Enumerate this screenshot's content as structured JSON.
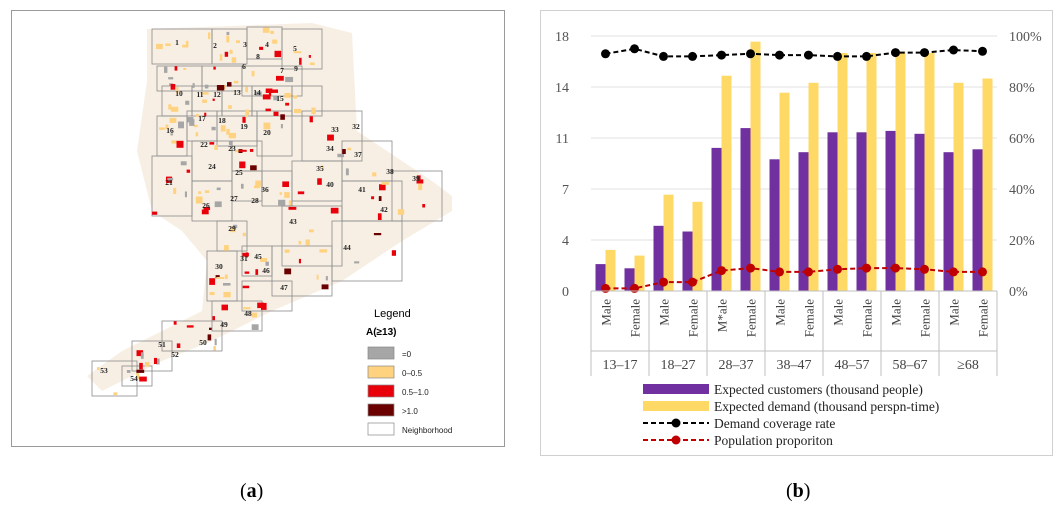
{
  "map": {
    "legend_title": "Legend",
    "legend_subtitle": "A(≥13)",
    "legend_items": [
      {
        "label": "=0",
        "color": "#a6a6a6"
      },
      {
        "label": "0–0.5",
        "color": "#ffd27f"
      },
      {
        "label": "0.5–1.0",
        "color": "#e8000b"
      },
      {
        "label": ">1.0",
        "color": "#6b0000"
      },
      {
        "label": "Neighborhood",
        "color": "#ffffff"
      }
    ],
    "neighborhood_labels": [
      "1",
      "2",
      "3",
      "4",
      "5",
      "6",
      "7",
      "8",
      "9",
      "10",
      "11",
      "12",
      "13",
      "14",
      "15",
      "16",
      "17",
      "18",
      "19",
      "20",
      "21",
      "22",
      "23",
      "24",
      "25",
      "26",
      "27",
      "28",
      "29",
      "30",
      "31",
      "32",
      "33",
      "34",
      "35",
      "36",
      "37",
      "38",
      "39",
      "40",
      "41",
      "42",
      "43",
      "44",
      "45",
      "46",
      "47",
      "48",
      "49",
      "50",
      "51",
      "52",
      "53",
      "54"
    ],
    "caption_letter": "a"
  },
  "chart_data": {
    "type": "bar",
    "caption_letter": "b",
    "groups": [
      "13–17",
      "18–27",
      "28–37",
      "38–47",
      "48–57",
      "58–67",
      "≥68"
    ],
    "categories": [
      "Male",
      "Female",
      "Male",
      "Female",
      "M*ale",
      "Female",
      "Male",
      "Female",
      "Male",
      "Female",
      "Male",
      "Female",
      "Male",
      "Female"
    ],
    "ylim": [
      0,
      18
    ],
    "y2lim": [
      0,
      1
    ],
    "yticks": [
      "0",
      "4",
      "7",
      "11",
      "14",
      "18"
    ],
    "y2ticks": [
      "0%",
      "20%",
      "40%",
      "60%",
      "80%",
      "100%"
    ],
    "series": [
      {
        "name": "Expected customers (thousand people)",
        "kind": "bar",
        "axis": "left",
        "color": "#7030a0",
        "values": [
          1.9,
          1.6,
          4.6,
          4.2,
          10.1,
          11.5,
          9.3,
          9.8,
          11.2,
          11.2,
          11.3,
          11.1,
          9.8,
          10.0
        ]
      },
      {
        "name": "Expected demand (thousand perspn-time)",
        "kind": "bar",
        "axis": "left",
        "color": "#ffd966",
        "values": [
          2.9,
          2.5,
          6.8,
          6.3,
          15.2,
          17.6,
          14.0,
          14.7,
          16.8,
          16.8,
          16.9,
          16.8,
          14.7,
          15.0
        ]
      },
      {
        "name": "Demand coverage rate",
        "kind": "line",
        "axis": "right",
        "color": "#000000",
        "values": [
          0.93,
          0.95,
          0.92,
          0.92,
          0.925,
          0.93,
          0.925,
          0.925,
          0.92,
          0.92,
          0.935,
          0.935,
          0.945,
          0.94
        ]
      },
      {
        "name": "Population proporiton",
        "kind": "line",
        "axis": "right",
        "color": "#c00000",
        "values": [
          0.01,
          0.01,
          0.035,
          0.035,
          0.08,
          0.09,
          0.075,
          0.075,
          0.085,
          0.09,
          0.09,
          0.085,
          0.075,
          0.075
        ]
      }
    ]
  }
}
